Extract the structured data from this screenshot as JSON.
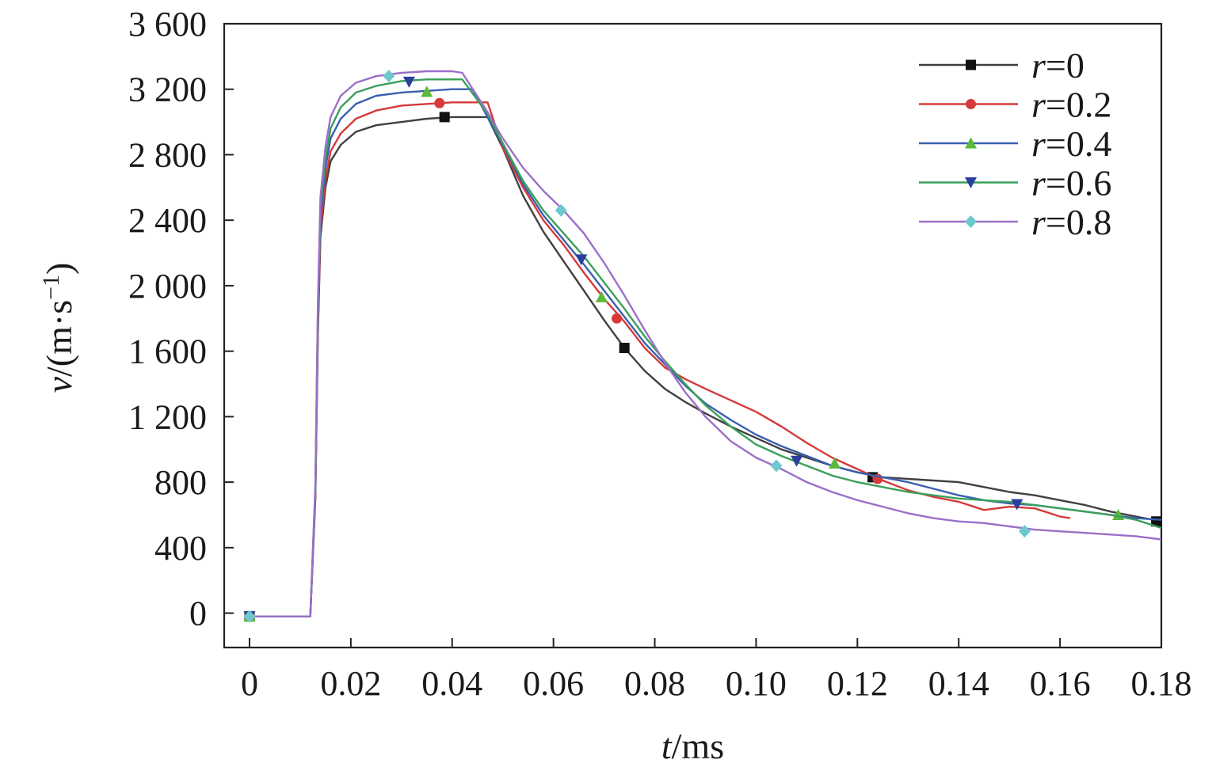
{
  "chart_data": {
    "type": "line",
    "xlabel": {
      "var": "t",
      "unit": "/ms"
    },
    "ylabel": {
      "var": "v",
      "unit_prefix": "/(m·s",
      "unit_exp": "−1",
      "unit_suffix": ")"
    },
    "xlim": [
      -0.005,
      0.18
    ],
    "ylim": [
      -210,
      3600
    ],
    "x_ticks": [
      0,
      0.02,
      0.04,
      0.06,
      0.08,
      0.1,
      0.12,
      0.14,
      0.16,
      0.18
    ],
    "x_tick_labels": [
      "0",
      "0.02",
      "0.04",
      "0.06",
      "0.08",
      "0.10",
      "0.12",
      "0.14",
      "0.16",
      "0.18"
    ],
    "y_ticks": [
      0,
      400,
      800,
      1200,
      1600,
      2000,
      2400,
      2800,
      3200,
      3600
    ],
    "y_tick_labels": [
      "0",
      "400",
      "800",
      "1 200",
      "1 600",
      "2 000",
      "2 400",
      "2 800",
      "3 200",
      "3 600"
    ],
    "legend_position": "top-right",
    "series": [
      {
        "name": "r=0",
        "var": "r",
        "value": "=0",
        "color": "#404040",
        "marker": "square",
        "marker_color": "#111111",
        "x": [
          0,
          0.012,
          0.013,
          0.0135,
          0.014,
          0.015,
          0.016,
          0.018,
          0.021,
          0.025,
          0.03,
          0.035,
          0.04,
          0.045,
          0.047,
          0.05,
          0.054,
          0.058,
          0.062,
          0.066,
          0.07,
          0.074,
          0.078,
          0.082,
          0.086,
          0.09,
          0.095,
          0.1,
          0.105,
          0.11,
          0.115,
          0.12,
          0.125,
          0.13,
          0.135,
          0.14,
          0.145,
          0.15,
          0.155,
          0.16,
          0.165,
          0.17,
          0.175,
          0.18
        ],
        "y": [
          -20,
          -20,
          700,
          1700,
          2300,
          2600,
          2760,
          2860,
          2940,
          2980,
          3000,
          3020,
          3030,
          3030,
          3030,
          2840,
          2550,
          2330,
          2150,
          1970,
          1790,
          1620,
          1480,
          1370,
          1290,
          1220,
          1140,
          1070,
          1000,
          950,
          900,
          860,
          830,
          820,
          810,
          800,
          770,
          740,
          720,
          690,
          660,
          620,
          590,
          560
        ],
        "marker_x": [
          0,
          0.0385,
          0.074,
          0.123,
          0.179
        ],
        "marker_y": [
          -20,
          3030,
          1620,
          830,
          560
        ]
      },
      {
        "name": "r=0.2",
        "var": "r",
        "value": "=0.2",
        "color": "#d63a3a",
        "marker": "circle",
        "marker_color": "#d63a3a",
        "x": [
          0,
          0.012,
          0.013,
          0.0135,
          0.014,
          0.015,
          0.016,
          0.018,
          0.021,
          0.025,
          0.03,
          0.035,
          0.04,
          0.045,
          0.047,
          0.05,
          0.054,
          0.058,
          0.062,
          0.066,
          0.07,
          0.074,
          0.078,
          0.082,
          0.086,
          0.09,
          0.095,
          0.1,
          0.105,
          0.11,
          0.115,
          0.12,
          0.125,
          0.13,
          0.135,
          0.14,
          0.145,
          0.15,
          0.155,
          0.16,
          0.162
        ],
        "y": [
          -20,
          -20,
          720,
          1750,
          2350,
          2650,
          2820,
          2930,
          3020,
          3070,
          3100,
          3110,
          3120,
          3120,
          3120,
          2840,
          2600,
          2400,
          2250,
          2080,
          1920,
          1780,
          1620,
          1500,
          1430,
          1370,
          1300,
          1230,
          1140,
          1040,
          950,
          880,
          810,
          750,
          710,
          680,
          630,
          650,
          640,
          590,
          580
        ],
        "marker_x": [
          0,
          0.0375,
          0.0725,
          0.124
        ],
        "marker_y": [
          -20,
          3115,
          1800,
          820
        ]
      },
      {
        "name": "r=0.4",
        "var": "r",
        "value": "=0.4",
        "color": "#3a5fb0",
        "marker": "triangle-up",
        "marker_color": "#5cb83a",
        "x": [
          0,
          0.012,
          0.013,
          0.0135,
          0.014,
          0.015,
          0.016,
          0.018,
          0.021,
          0.025,
          0.03,
          0.035,
          0.04,
          0.044,
          0.047,
          0.05,
          0.054,
          0.058,
          0.062,
          0.066,
          0.07,
          0.074,
          0.078,
          0.082,
          0.086,
          0.09,
          0.095,
          0.1,
          0.105,
          0.11,
          0.115,
          0.12,
          0.125,
          0.13,
          0.135,
          0.14,
          0.145,
          0.15,
          0.155,
          0.16,
          0.165,
          0.17,
          0.175,
          0.18
        ],
        "y": [
          -20,
          -20,
          740,
          1800,
          2420,
          2720,
          2900,
          3020,
          3110,
          3160,
          3180,
          3190,
          3200,
          3200,
          3030,
          2860,
          2620,
          2430,
          2280,
          2130,
          1970,
          1810,
          1650,
          1520,
          1390,
          1280,
          1180,
          1090,
          1020,
          960,
          900,
          860,
          830,
          800,
          760,
          720,
          690,
          670,
          660,
          640,
          620,
          600,
          580,
          570
        ],
        "marker_x": [
          0,
          0.035,
          0.0695,
          0.1155,
          0.1715
        ],
        "marker_y": [
          -20,
          3185,
          1930,
          915,
          600
        ]
      },
      {
        "name": "r=0.6",
        "var": "r",
        "value": "=0.6",
        "color": "#3aa05a",
        "marker": "triangle-down",
        "marker_color": "#2a3f9e",
        "x": [
          0,
          0.012,
          0.013,
          0.0135,
          0.014,
          0.015,
          0.016,
          0.018,
          0.021,
          0.025,
          0.03,
          0.035,
          0.04,
          0.042,
          0.047,
          0.05,
          0.054,
          0.058,
          0.062,
          0.066,
          0.07,
          0.074,
          0.078,
          0.082,
          0.086,
          0.09,
          0.095,
          0.1,
          0.105,
          0.11,
          0.115,
          0.12,
          0.125,
          0.13,
          0.135,
          0.14,
          0.145,
          0.15,
          0.155,
          0.16,
          0.165,
          0.17,
          0.175,
          0.18
        ],
        "y": [
          -20,
          -20,
          760,
          1850,
          2480,
          2780,
          2960,
          3090,
          3180,
          3220,
          3250,
          3260,
          3260,
          3260,
          3050,
          2870,
          2640,
          2460,
          2320,
          2180,
          2020,
          1860,
          1690,
          1540,
          1400,
          1270,
          1140,
          1030,
          960,
          900,
          840,
          800,
          770,
          740,
          720,
          700,
          690,
          680,
          660,
          640,
          620,
          600,
          570,
          520
        ],
        "marker_x": [
          0,
          0.0315,
          0.0655,
          0.108,
          0.1515
        ],
        "marker_y": [
          -20,
          3245,
          2160,
          930,
          665
        ]
      },
      {
        "name": "r=0.8",
        "var": "r",
        "value": "=0.8",
        "color": "#9b6fc8",
        "marker": "diamond",
        "marker_color": "#6ec9cf",
        "x": [
          0,
          0.012,
          0.013,
          0.0135,
          0.014,
          0.015,
          0.016,
          0.018,
          0.021,
          0.025,
          0.03,
          0.035,
          0.04,
          0.042,
          0.047,
          0.05,
          0.054,
          0.058,
          0.062,
          0.066,
          0.07,
          0.074,
          0.078,
          0.082,
          0.086,
          0.09,
          0.095,
          0.1,
          0.105,
          0.11,
          0.115,
          0.12,
          0.125,
          0.13,
          0.135,
          0.14,
          0.145,
          0.15,
          0.155,
          0.16,
          0.165,
          0.17,
          0.175,
          0.18
        ],
        "y": [
          -20,
          -20,
          780,
          1900,
          2540,
          2850,
          3030,
          3160,
          3240,
          3280,
          3300,
          3310,
          3310,
          3300,
          3060,
          2900,
          2720,
          2580,
          2460,
          2320,
          2140,
          1940,
          1730,
          1530,
          1350,
          1200,
          1050,
          950,
          880,
          800,
          740,
          690,
          650,
          610,
          580,
          560,
          550,
          530,
          510,
          500,
          490,
          480,
          470,
          450
        ],
        "marker_x": [
          0,
          0.0275,
          0.0615,
          0.104,
          0.153
        ],
        "marker_y": [
          -20,
          3280,
          2460,
          900,
          500
        ]
      }
    ]
  }
}
